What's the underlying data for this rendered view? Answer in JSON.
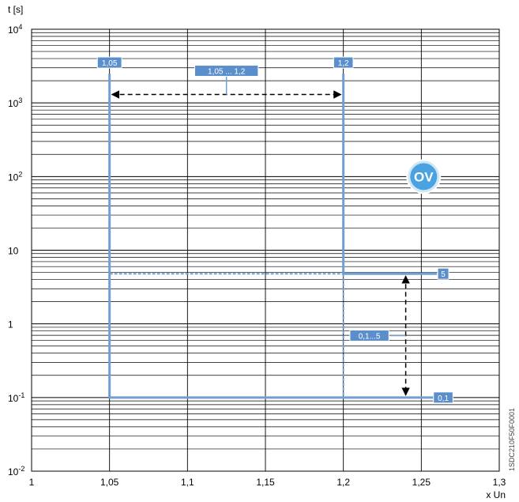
{
  "chart_data": {
    "type": "line",
    "title": "",
    "ylabel": "t [s]",
    "xlabel": "x Un",
    "side_code": "1SDC210F50F0001",
    "xlim": [
      1.0,
      1.3
    ],
    "ylim": [
      0.01,
      10000
    ],
    "y_scale": "log",
    "grid": true,
    "x_ticks": [
      {
        "v": 1.0,
        "label": "1"
      },
      {
        "v": 1.05,
        "label": "1,05"
      },
      {
        "v": 1.1,
        "label": "1,1"
      },
      {
        "v": 1.15,
        "label": "1,15"
      },
      {
        "v": 1.2,
        "label": "1,2"
      },
      {
        "v": 1.25,
        "label": "1,25"
      },
      {
        "v": 1.3,
        "label": "1,3"
      }
    ],
    "y_ticks": [
      {
        "v": 0.01,
        "base": "10",
        "exp": "-2"
      },
      {
        "v": 0.1,
        "base": "10",
        "exp": "-1"
      },
      {
        "v": 1,
        "base": "1",
        "exp": ""
      },
      {
        "v": 10,
        "base": "10",
        "exp": ""
      },
      {
        "v": 100,
        "base": "10",
        "exp": "2"
      },
      {
        "v": 1000,
        "base": "10",
        "exp": "3"
      },
      {
        "v": 10000,
        "base": "10",
        "exp": "4"
      }
    ],
    "curves": [
      {
        "name": "",
        "style": "solid",
        "points": [
          [
            1.05,
            2500
          ],
          [
            1.05,
            0.1
          ],
          [
            1.26,
            0.1
          ]
        ]
      },
      {
        "name": "",
        "style": "solid",
        "points": [
          [
            1.2,
            2500
          ],
          [
            1.2,
            4.8
          ],
          [
            1.26,
            4.8
          ]
        ]
      },
      {
        "name": "",
        "style": "dashed",
        "points": [
          [
            1.05,
            4.8
          ],
          [
            1.2,
            4.8
          ]
        ]
      },
      {
        "name": "",
        "style": "dashed",
        "points": [
          [
            1.2,
            4.8
          ],
          [
            1.2,
            0.1
          ]
        ]
      }
    ],
    "value_labels": [
      {
        "text": "1,05",
        "x": 1.05,
        "y": 2500
      },
      {
        "text": "1,2",
        "x": 1.2,
        "y": 2500
      },
      {
        "text": "5",
        "x": 1.26,
        "y": 4.8
      },
      {
        "text": "0,1",
        "x": 1.26,
        "y": 0.1
      }
    ],
    "range_annotations": [
      {
        "text": "1,05 ... 1,2",
        "axis": "x",
        "from": 1.05,
        "to": 1.2,
        "at_y": 1300
      },
      {
        "text": "0,1...5",
        "axis": "y",
        "from": 0.1,
        "to": 4.8,
        "at_x": 1.24
      }
    ],
    "badge": {
      "text": "OV",
      "x": 1.2515,
      "y": 100
    },
    "colors": {
      "curve": "#6f9fd4",
      "grid": "#000000",
      "label_bg": "#5b8fcc",
      "badge": "#4aa3e0"
    }
  }
}
